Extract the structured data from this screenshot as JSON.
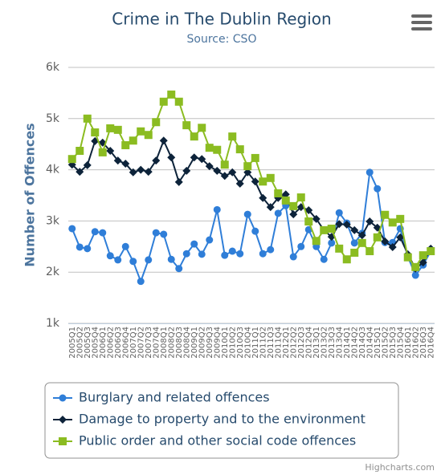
{
  "chart_data": {
    "type": "line",
    "title": "Crime in The Dublin Region",
    "subtitle": "Source: CSO",
    "y_axis_label": "Number of Offences",
    "credits": "Highcharts.com",
    "categories": [
      "2005Q1",
      "2005Q2",
      "2005Q3",
      "2005Q4",
      "2006Q1",
      "2006Q2",
      "2006Q3",
      "2006Q4",
      "2007Q1",
      "2007Q2",
      "2007Q3",
      "2007Q4",
      "2008Q1",
      "2008Q2",
      "2008Q3",
      "2008Q4",
      "2009Q1",
      "2009Q2",
      "2009Q3",
      "2009Q4",
      "2010Q1",
      "2010Q2",
      "2010Q3",
      "2010Q4",
      "2011Q1",
      "2011Q2",
      "2011Q3",
      "2011Q4",
      "2012Q1",
      "2012Q2",
      "2012Q3",
      "2012Q4",
      "2013Q1",
      "2013Q2",
      "2013Q3",
      "2013Q4",
      "2014Q1",
      "2014Q2",
      "2014Q3",
      "2014Q4",
      "2015Q1",
      "2015Q2",
      "2015Q3",
      "2015Q4",
      "2016Q1",
      "2016Q2",
      "2016Q3",
      "2016Q4"
    ],
    "series": [
      {
        "name": "Burglary and related offences",
        "color": "#2f7ed8",
        "marker": "circle",
        "values": [
          2850,
          2490,
          2460,
          2790,
          2770,
          2320,
          2240,
          2500,
          2210,
          1820,
          2240,
          2770,
          2740,
          2250,
          2070,
          2360,
          2550,
          2350,
          2630,
          3220,
          2330,
          2410,
          2360,
          3130,
          2800,
          2360,
          2440,
          3150,
          3300,
          2300,
          2500,
          2830,
          2500,
          2250,
          2570,
          3160,
          2960,
          2570,
          2760,
          3950,
          3630,
          2580,
          2580,
          2850,
          2300,
          1940,
          2140,
          2410
        ]
      },
      {
        "name": "Damage to property and to the environment",
        "color": "#0d233a",
        "marker": "diamond",
        "values": [
          4100,
          3960,
          4090,
          4560,
          4530,
          4370,
          4180,
          4120,
          3950,
          4000,
          3960,
          4180,
          4570,
          4240,
          3760,
          3980,
          4240,
          4210,
          4070,
          3980,
          3880,
          3950,
          3730,
          3950,
          3770,
          3450,
          3270,
          3450,
          3520,
          3130,
          3270,
          3210,
          3040,
          2820,
          2690,
          2940,
          2930,
          2820,
          2720,
          2990,
          2870,
          2600,
          2490,
          2680,
          2350,
          2070,
          2190,
          2460
        ]
      },
      {
        "name": "Public order and other social code offences",
        "color": "#8bbc21",
        "marker": "square",
        "values": [
          4210,
          4370,
          5000,
          4730,
          4340,
          4810,
          4780,
          4480,
          4570,
          4750,
          4680,
          4930,
          5330,
          5470,
          5330,
          4870,
          4650,
          4820,
          4430,
          4390,
          4100,
          4650,
          4400,
          4070,
          4230,
          3770,
          3840,
          3540,
          3400,
          3290,
          3460,
          2990,
          2610,
          2820,
          2850,
          2460,
          2250,
          2380,
          2570,
          2410,
          2680,
          3120,
          2970,
          3040,
          2290,
          2100,
          2330,
          2410
        ]
      }
    ],
    "ylim": [
      1000,
      6000
    ],
    "yticks": [
      {
        "value": 1000,
        "label": "1k"
      },
      {
        "value": 2000,
        "label": "2k"
      },
      {
        "value": 3000,
        "label": "3k"
      },
      {
        "value": 4000,
        "label": "4k"
      },
      {
        "value": 5000,
        "label": "5k"
      },
      {
        "value": 6000,
        "label": "6k"
      }
    ],
    "grid": true
  }
}
